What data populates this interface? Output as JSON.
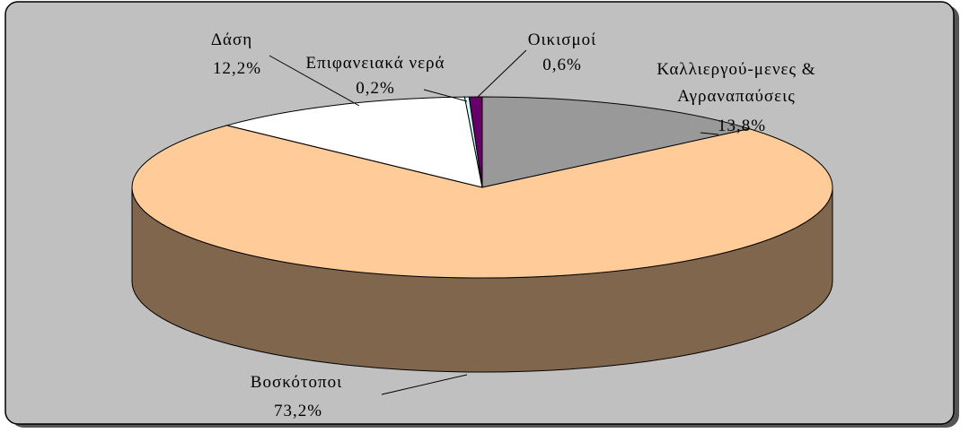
{
  "chart_data": {
    "type": "pie3d",
    "categories": [
      "Καλλιεργού-μενες & Αγραναπαύσεις",
      "Βοσκότοποι",
      "Δάση",
      "Επιφανειακά νερά",
      "Οικισμοί"
    ],
    "values": [
      13.8,
      73.2,
      12.2,
      0.2,
      0.6
    ],
    "value_labels": [
      "13,8%",
      "73,2%",
      "12,2%",
      "0,2%",
      "0,6%"
    ],
    "colors": [
      "#999999",
      "#ffcc99",
      "#ffffff",
      "#ccffff",
      "#660066"
    ]
  }
}
